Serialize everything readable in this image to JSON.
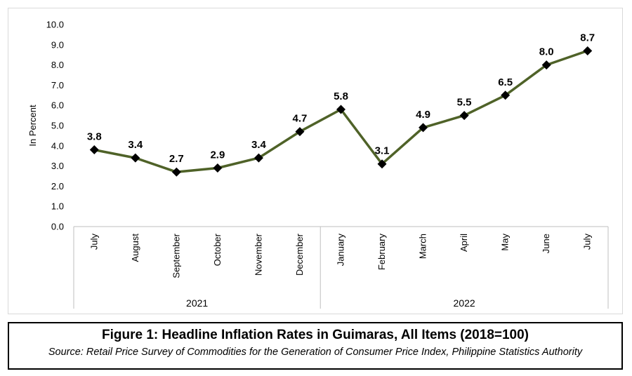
{
  "chart_data": {
    "type": "line",
    "title": "Figure 1: Headline Inflation Rates in Guimaras, All Items (2018=100)",
    "source": "Source: Retail Price Survey of Commodities for the Generation of Consumer Price Index, Philippine Statistics Authority",
    "ylabel": "In Percent",
    "ylim": [
      0,
      10
    ],
    "yticks": [
      "0.0",
      "1.0",
      "2.0",
      "3.0",
      "4.0",
      "5.0",
      "6.0",
      "7.0",
      "8.0",
      "9.0",
      "10.0"
    ],
    "categories": [
      "July",
      "August",
      "September",
      "October",
      "November",
      "December",
      "January",
      "February",
      "March",
      "April",
      "May",
      "June",
      "July"
    ],
    "groups": [
      {
        "label": "2021",
        "count": 6
      },
      {
        "label": "2022",
        "count": 7
      }
    ],
    "series": [
      {
        "values": [
          3.8,
          3.4,
          2.7,
          2.9,
          3.4,
          4.7,
          5.8,
          3.1,
          4.9,
          5.5,
          6.5,
          8.0,
          8.7
        ]
      }
    ],
    "data_labels": [
      "3.8",
      "3.4",
      "2.7",
      "2.9",
      "3.4",
      "4.7",
      "5.8",
      "3.1",
      "4.9",
      "5.5",
      "6.5",
      "8.0",
      "8.7"
    ],
    "line_color": "#4f6228",
    "marker_color": "#000000",
    "grid": false
  }
}
